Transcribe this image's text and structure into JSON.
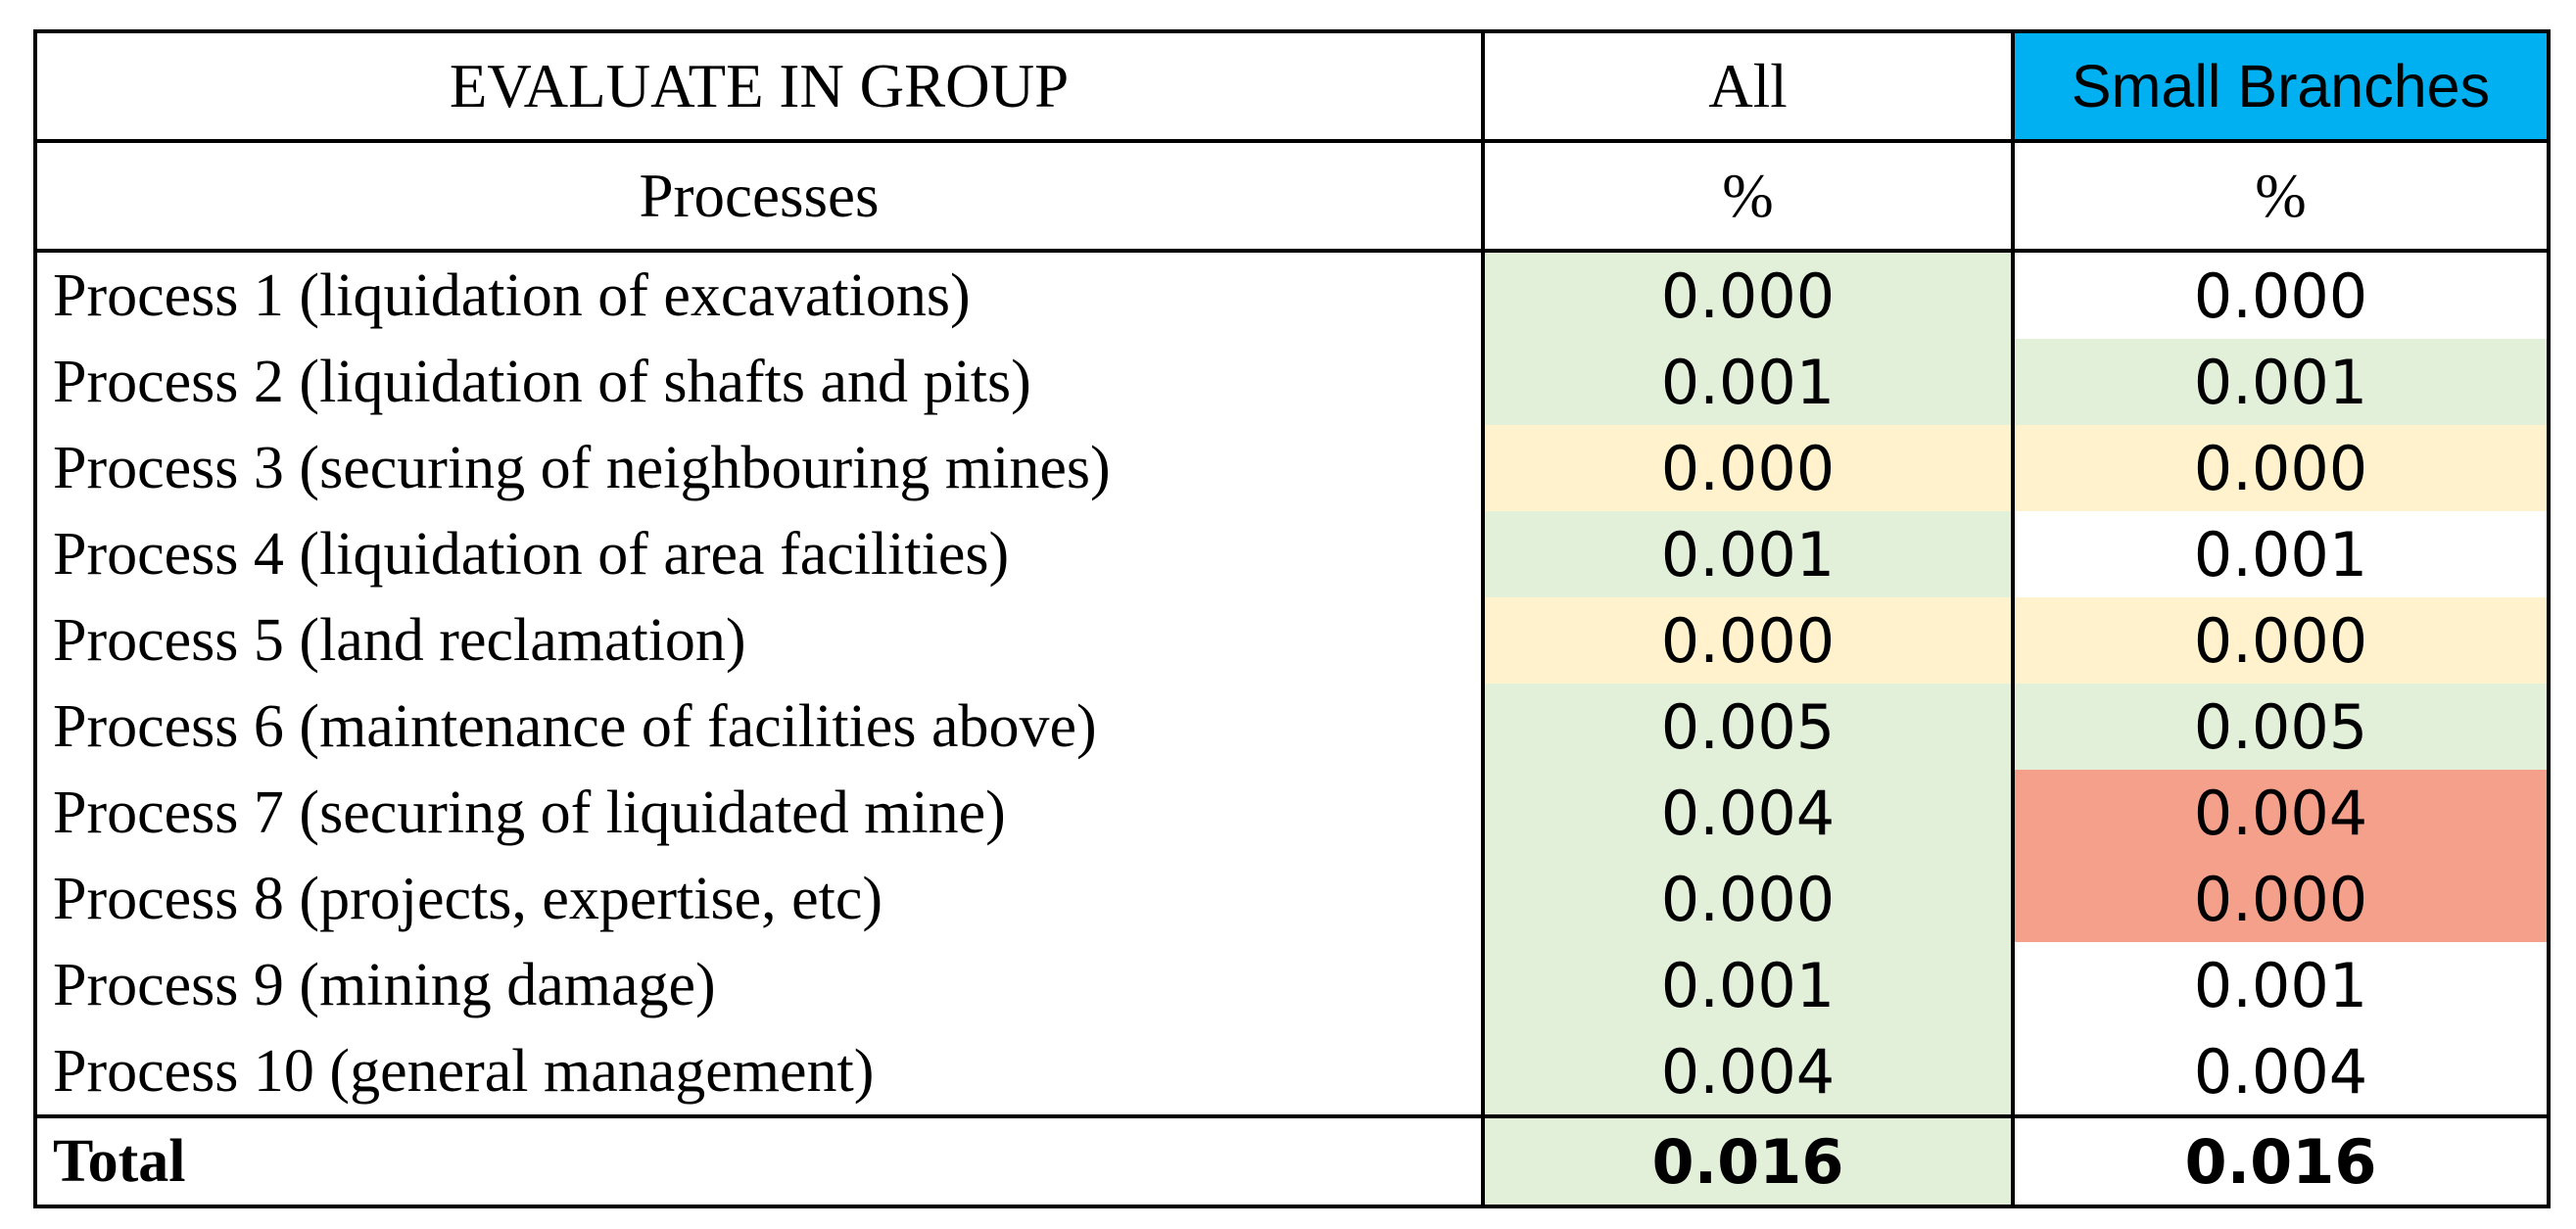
{
  "table": {
    "header": {
      "group_label": "EVALUATE IN GROUP",
      "col_all": "All",
      "col_small_branches": "Small Branches"
    },
    "subheader": {
      "processes": "Processes",
      "unit_all": "%",
      "unit_small_branches": "%"
    },
    "colors": {
      "header_highlight": "#00b0f0",
      "green": "#e2efd9",
      "yellow": "#fff2cc",
      "red": "#f4a08a",
      "white": "#ffffff"
    },
    "rows": [
      {
        "label": "Process 1 (liquidation of excavations)",
        "all": "0.000",
        "small": "0.000",
        "all_color": "#e2efd9",
        "small_color": "#ffffff"
      },
      {
        "label": "Process 2 (liquidation of shafts and pits)",
        "all": "0.001",
        "small": "0.001",
        "all_color": "#e2efd9",
        "small_color": "#e2efd9"
      },
      {
        "label": "Process 3 (securing of neighbouring mines)",
        "all": "0.000",
        "small": "0.000",
        "all_color": "#fff2cc",
        "small_color": "#fff2cc"
      },
      {
        "label": "Process 4 (liquidation of area facilities)",
        "all": "0.001",
        "small": "0.001",
        "all_color": "#e2efd9",
        "small_color": "#ffffff"
      },
      {
        "label": "Process 5 (land reclamation)",
        "all": "0.000",
        "small": "0.000",
        "all_color": "#fff2cc",
        "small_color": "#fff2cc"
      },
      {
        "label": "Process 6 (maintenance of facilities above)",
        "all": "0.005",
        "small": "0.005",
        "all_color": "#e2efd9",
        "small_color": "#e2efd9"
      },
      {
        "label": "Process 7 (securing of liquidated mine)",
        "all": "0.004",
        "small": "0.004",
        "all_color": "#e2efd9",
        "small_color": "#f4a08a"
      },
      {
        "label": "Process 8 (projects, expertise, etc)",
        "all": "0.000",
        "small": "0.000",
        "all_color": "#e2efd9",
        "small_color": "#f4a08a"
      },
      {
        "label": "Process 9 (mining damage)",
        "all": "0.001",
        "small": "0.001",
        "all_color": "#e2efd9",
        "small_color": "#ffffff"
      },
      {
        "label": "Process 10 (general management)",
        "all": "0.004",
        "small": "0.004",
        "all_color": "#e2efd9",
        "small_color": "#ffffff"
      }
    ],
    "total": {
      "label": "Total",
      "all": "0.016",
      "small": "0.016",
      "all_color": "#e2efd9",
      "small_color": "#ffffff"
    }
  }
}
